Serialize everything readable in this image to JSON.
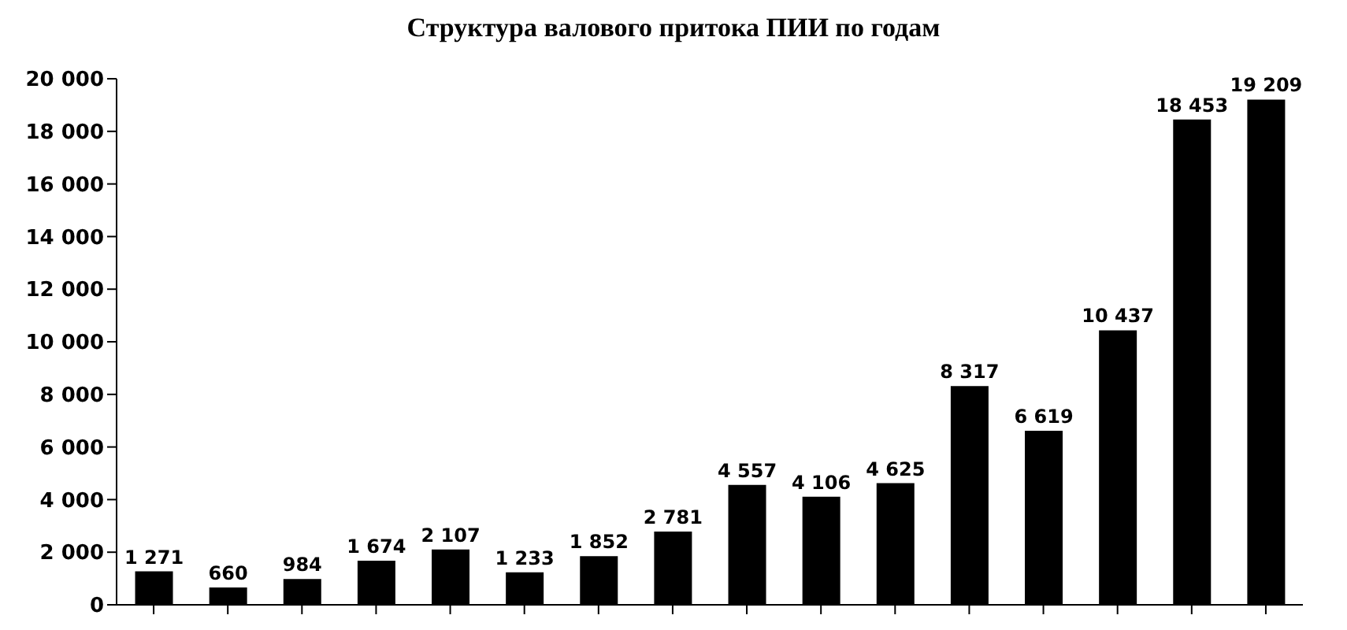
{
  "chart_data": {
    "type": "bar",
    "title": "Структура валового притока ПИИ по годам",
    "categories": [
      null,
      null,
      null,
      null,
      null,
      null,
      null,
      null,
      null,
      null,
      null,
      null,
      null,
      null,
      null,
      null
    ],
    "values": [
      1271,
      660,
      984,
      1674,
      2107,
      1233,
      1852,
      2781,
      4557,
      4106,
      4625,
      8317,
      6619,
      10437,
      18453,
      19209
    ],
    "color": "#000000",
    "data_labels": true,
    "grid": false,
    "ylim": [
      0,
      20000
    ],
    "yticks": [
      {
        "value": 0,
        "label": "0"
      },
      {
        "value": 2000,
        "label": "2 000"
      },
      {
        "value": 4000,
        "label": "4 000"
      },
      {
        "value": 6000,
        "label": "6 000"
      },
      {
        "value": 8000,
        "label": "8 000"
      },
      {
        "value": 10000,
        "label": "10 000"
      },
      {
        "value": 12000,
        "label": "12 000"
      },
      {
        "value": 14000,
        "label": "14 000"
      },
      {
        "value": 16000,
        "label": "16 000"
      },
      {
        "value": 18000,
        "label": "18 000"
      },
      {
        "value": 20000,
        "label": "20 000"
      }
    ]
  }
}
